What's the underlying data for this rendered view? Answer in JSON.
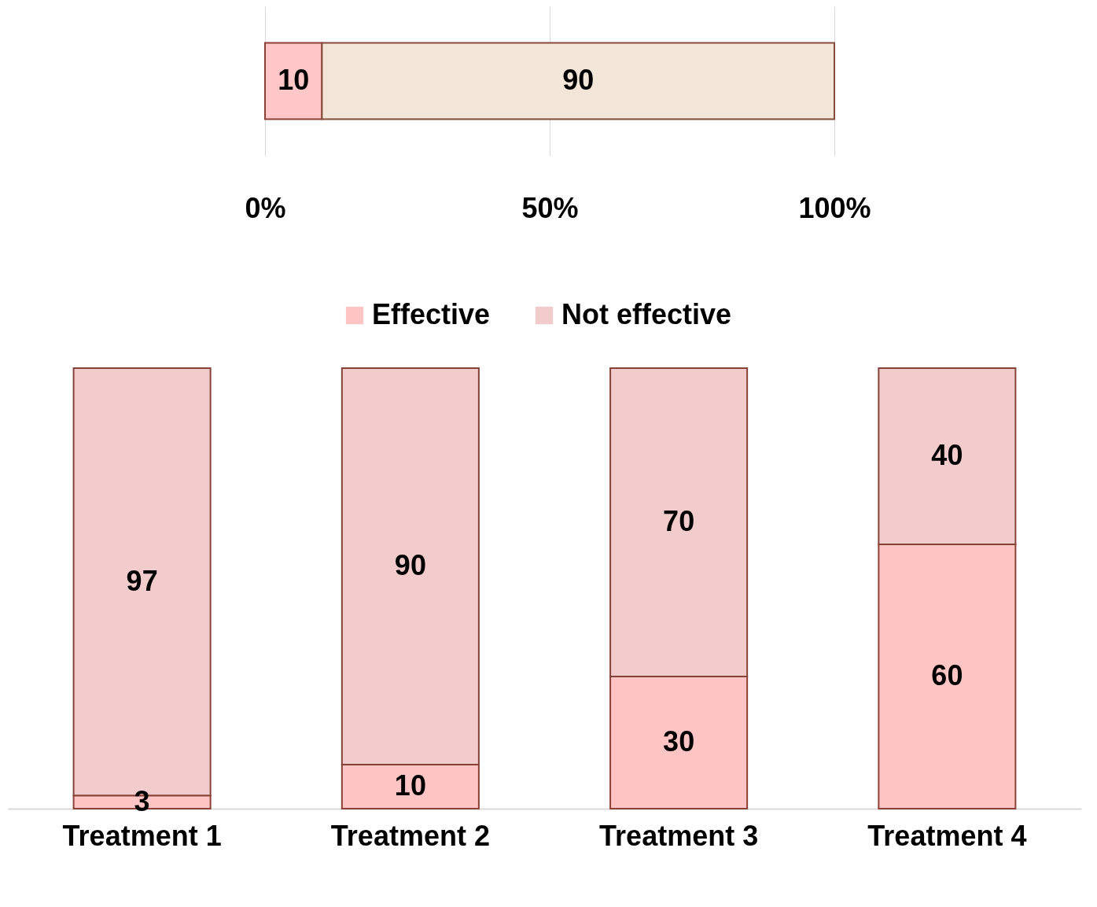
{
  "chart_data": [
    {
      "type": "bar",
      "orientation": "horizontal",
      "stacked": true,
      "categories": [
        null
      ],
      "xlim": [
        0,
        100
      ],
      "xticks": [
        {
          "value": 0,
          "label": "0%"
        },
        {
          "value": 50,
          "label": "50%"
        },
        {
          "value": 100,
          "label": "100%"
        }
      ],
      "grid": "x",
      "data_labels": true,
      "tick_labels": "x",
      "series": [
        {
          "color": "#ffc7c7",
          "values": [
            10
          ]
        },
        {
          "color": "#f2e6d9",
          "values": [
            90
          ]
        }
      ]
    },
    {
      "type": "bar",
      "stacked": true,
      "categories": [
        "Treatment 1",
        "Treatment 2",
        "Treatment 3",
        "Treatment 4"
      ],
      "ylim": [
        0,
        100
      ],
      "tick_labels": "x",
      "data_labels": true,
      "legend": "top",
      "series": [
        {
          "name": "Effective",
          "color": "#ffc5c5",
          "values": [
            3,
            10,
            30,
            60
          ]
        },
        {
          "name": "Not effective",
          "color": "#f2cccc",
          "values": [
            97,
            90,
            70,
            40
          ]
        }
      ]
    }
  ]
}
